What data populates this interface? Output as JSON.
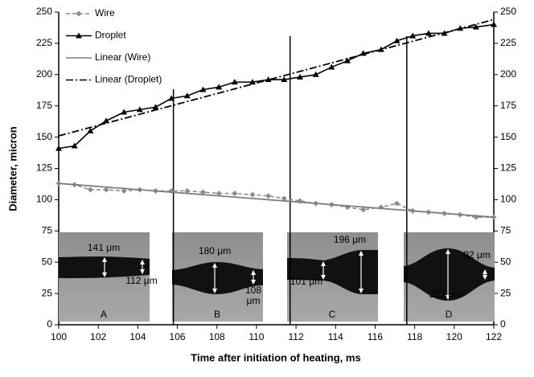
{
  "chart_data": {
    "type": "line",
    "xlabel": "Time after initiation of heating, ms",
    "ylabel": "Diameter, micron",
    "xlim": [
      100,
      122
    ],
    "xticks": [
      100,
      102,
      104,
      106,
      108,
      110,
      112,
      114,
      116,
      118,
      120,
      122
    ],
    "ylim": [
      0,
      250
    ],
    "yticks": [
      0,
      25,
      50,
      75,
      100,
      125,
      150,
      175,
      200,
      225,
      250
    ],
    "y2lim": [
      0,
      250
    ],
    "y2ticks": [
      0,
      25,
      50,
      75,
      100,
      125,
      150,
      175,
      200,
      225,
      250
    ],
    "legend": "upper-left",
    "series": [
      {
        "name": "Wire",
        "color": "#8c8c8c",
        "style": "dashed",
        "marker": "diamond",
        "x": [
          100,
          100.8,
          101.6,
          102.4,
          103.3,
          104.1,
          104.9,
          105.7,
          106.5,
          107.3,
          108.1,
          108.9,
          109.8,
          110.6,
          111.4,
          112.2,
          113.0,
          113.8,
          114.6,
          115.4,
          116.3,
          117.1,
          117.9,
          118.7,
          119.5,
          120.3,
          121.1,
          122
        ],
        "values": [
          113,
          112,
          108,
          108,
          107,
          108,
          107,
          107,
          107,
          106,
          105,
          105,
          104,
          103,
          101,
          99,
          97,
          96,
          94,
          92,
          94,
          97,
          91,
          90,
          89,
          88,
          86,
          86
        ]
      },
      {
        "name": "Droplet",
        "color": "#000000",
        "style": "solid",
        "marker": "triangle",
        "x": [
          100,
          100.8,
          101.6,
          102.4,
          103.3,
          104.1,
          104.9,
          105.7,
          106.5,
          107.3,
          108.1,
          108.9,
          109.8,
          110.6,
          111.4,
          112.2,
          113.0,
          113.8,
          114.6,
          115.4,
          116.3,
          117.1,
          117.9,
          118.7,
          119.5,
          120.3,
          121.1,
          122
        ],
        "values": [
          141,
          143,
          155,
          163,
          170,
          172,
          174,
          181,
          183,
          188,
          190,
          194,
          194,
          196,
          196,
          198,
          200,
          206,
          211,
          217,
          220,
          227,
          231,
          233,
          233,
          237,
          238,
          240
        ]
      },
      {
        "name": "Linear (Wire)",
        "color": "#7f7f7f",
        "style": "solid",
        "marker": null,
        "x": [
          100,
          122
        ],
        "values": [
          113,
          86
        ]
      },
      {
        "name": "Linear (Droplet)",
        "color": "#000000",
        "style": "dashdot",
        "marker": null,
        "x": [
          100,
          122
        ],
        "values": [
          151,
          244
        ]
      }
    ],
    "insets": [
      {
        "label": "A",
        "annotations": [
          "141 μm",
          "112 μm"
        ]
      },
      {
        "label": "B",
        "annotations": [
          "180 μm",
          "108 μm"
        ]
      },
      {
        "label": "C",
        "annotations": [
          "196 μm",
          "101 μm"
        ]
      },
      {
        "label": "D",
        "annotations": [
          "92 μm",
          "227 μm"
        ]
      }
    ]
  }
}
